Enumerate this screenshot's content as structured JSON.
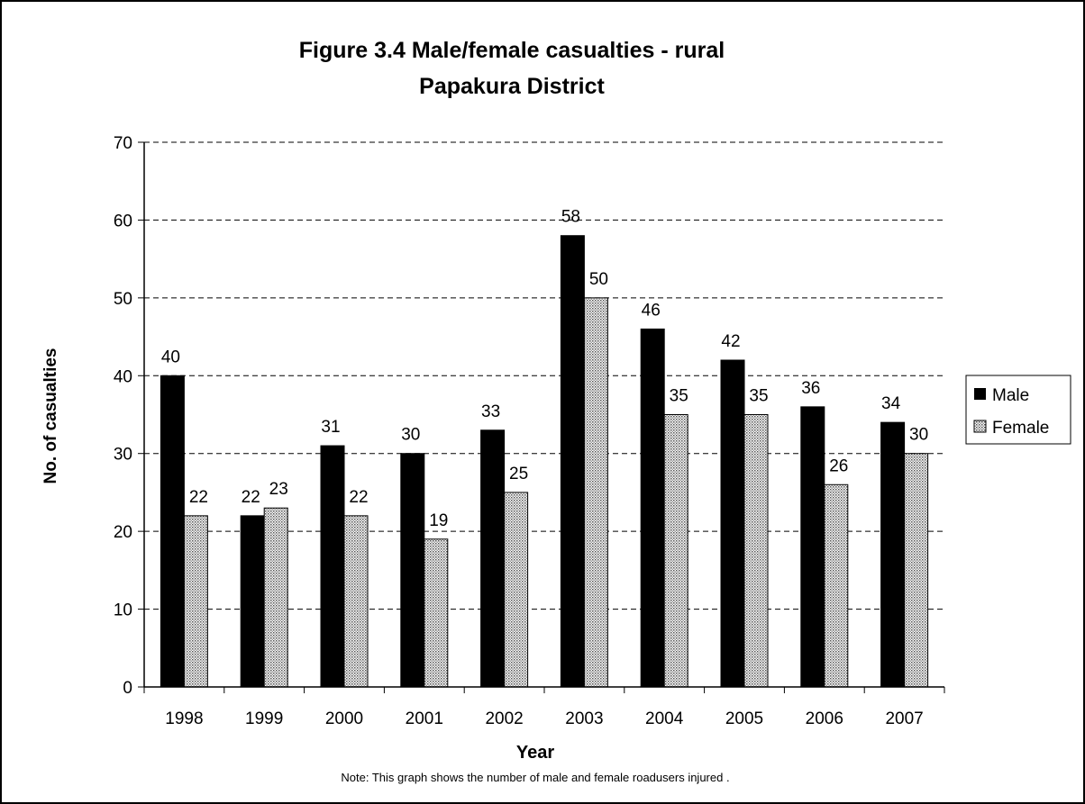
{
  "chart_data": {
    "type": "bar",
    "title_line1": "Figure 3.4 Male/female casualties - rural",
    "title_line2": "Papakura District",
    "xlabel": "Year",
    "ylabel": "No. of casualties",
    "note": "Note: This graph shows the number of male and female roadusers injured .",
    "categories": [
      "1998",
      "1999",
      "2000",
      "2001",
      "2002",
      "2003",
      "2004",
      "2005",
      "2006",
      "2007"
    ],
    "ylim": [
      0,
      70
    ],
    "yticks": [
      "0",
      "10",
      "20",
      "30",
      "40",
      "50",
      "60",
      "70"
    ],
    "grid": "horizontal dashed",
    "legend_position": "right",
    "series": [
      {
        "name": "Male",
        "values": [
          40,
          22,
          31,
          30,
          33,
          58,
          46,
          42,
          36,
          34
        ],
        "color": "#000000",
        "pattern": "solid"
      },
      {
        "name": "Female",
        "values": [
          22,
          23,
          22,
          19,
          25,
          50,
          35,
          35,
          26,
          30
        ],
        "color": "#d9d9d9",
        "pattern": "dotted"
      }
    ]
  }
}
